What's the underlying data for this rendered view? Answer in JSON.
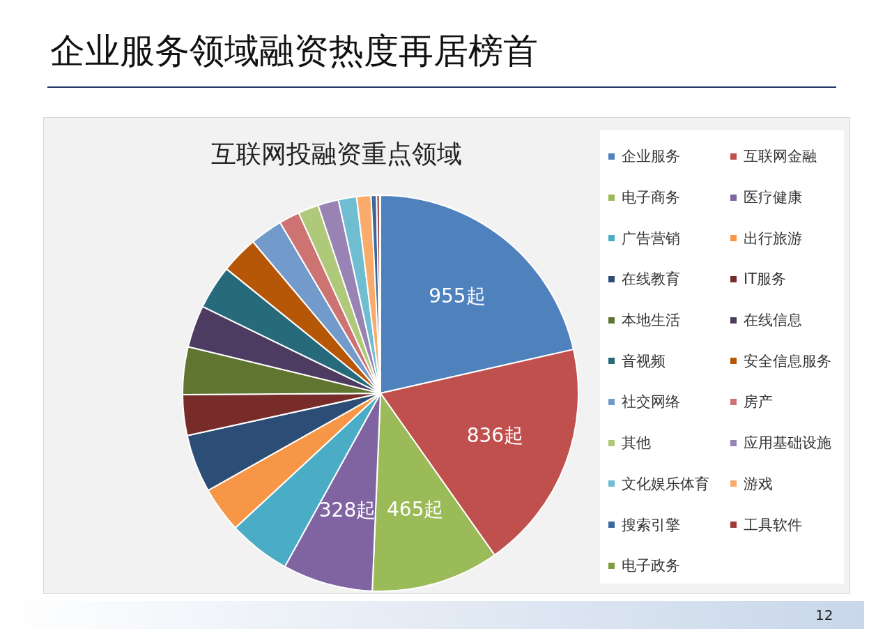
{
  "chart_data": {
    "type": "pie",
    "title": "企业服务领域融资热度再居榜首",
    "subtitle": "互联网投融资重点领域",
    "categories": [
      "企业服务",
      "互联网金融",
      "电子商务",
      "医疗健康",
      "广告营销",
      "出行旅游",
      "在线教育",
      "IT服务",
      "本地生活",
      "在线信息",
      "音视频",
      "安全信息服务",
      "社交网络",
      "房产",
      "其他",
      "应用基础设施",
      "文化娱乐体育",
      "游戏",
      "搜索引擎",
      "工具软件",
      "电子政务"
    ],
    "values": [
      955,
      836,
      465,
      328,
      226,
      166,
      211,
      148,
      173,
      153,
      160,
      136,
      119,
      75,
      75,
      75,
      66,
      52,
      20,
      11,
      3
    ],
    "value_labels": [
      "955起",
      "836起",
      "465起",
      "328起",
      null,
      null,
      null,
      null,
      null,
      null,
      null,
      null,
      null,
      null,
      null,
      null,
      null,
      null,
      null,
      null,
      null
    ],
    "colors": [
      "#4f81bd",
      "#c0504d",
      "#9bbb59",
      "#8064a2",
      "#4bacc6",
      "#f79646",
      "#2c4d75",
      "#772c2a",
      "#5f7530",
      "#4d3b62",
      "#276a7c",
      "#b65708",
      "#729aca",
      "#cd7371",
      "#afc97a",
      "#9983b5",
      "#6fbdd1",
      "#f9ab6b",
      "#3a679c",
      "#9f3b38",
      "#7f9c40"
    ],
    "legend": "right",
    "annotations": [
      "12"
    ]
  }
}
